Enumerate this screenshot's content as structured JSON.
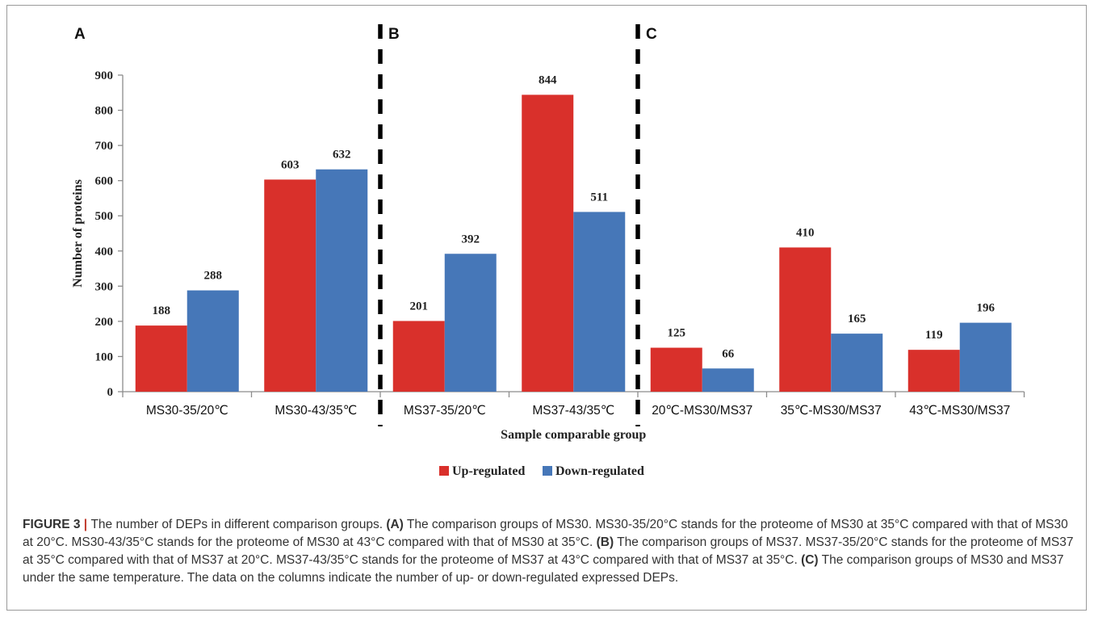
{
  "chart_data": {
    "type": "bar",
    "panels": [
      {
        "label": "A",
        "categories": [
          "MS30-35/20℃",
          "MS30-43/35℃"
        ]
      },
      {
        "label": "B",
        "categories": [
          "MS37-35/20℃",
          "MS37-43/35℃"
        ]
      },
      {
        "label": "C",
        "categories": [
          "20℃-MS30/MS37",
          "35℃-MS30/MS37",
          "43℃-MS30/MS37"
        ]
      }
    ],
    "categories": [
      "MS30-35/20℃",
      "MS30-43/35℃",
      "MS37-35/20℃",
      "MS37-43/35℃",
      "20℃-MS30/MS37",
      "35℃-MS30/MS37",
      "43℃-MS30/MS37"
    ],
    "series": [
      {
        "name": "Up-regulated",
        "color": "#d9302b",
        "values": [
          188,
          603,
          201,
          844,
          125,
          410,
          119
        ]
      },
      {
        "name": "Down-regulated",
        "color": "#4677b8",
        "values": [
          288,
          632,
          392,
          511,
          66,
          165,
          196
        ]
      }
    ],
    "xlabel": "Sample comparable group",
    "ylabel": "Number of proteins",
    "ylim": [
      0,
      900
    ],
    "yticks": [
      0,
      100,
      200,
      300,
      400,
      500,
      600,
      700,
      800,
      900
    ],
    "legend_position": "bottom",
    "grid": false
  },
  "caption": {
    "figure_label": "FIGURE 3",
    "separator": " | ",
    "intro": "The number of DEPs in different comparison groups. ",
    "a_label": "(A)",
    "a_text": " The comparison groups of MS30. MS30-35/20°C stands for the proteome of MS30 at 35°C compared with that of MS30 at 20°C. MS30-43/35°C stands for the proteome of MS30 at 43°C compared with that of MS30 at 35°C. ",
    "b_label": "(B)",
    "b_text": " The comparison groups of MS37. MS37-35/20°C stands for the proteome of MS37 at 35°C compared with that of MS37 at 20°C. MS37-43/35°C stands for the proteome of MS37 at 43°C compared with that of MS37 at 35°C. ",
    "c_label": "(C)",
    "c_text": " The comparison groups of MS30 and MS37 under the same temperature. The data on the columns indicate the number of up- or down-regulated expressed DEPs."
  }
}
